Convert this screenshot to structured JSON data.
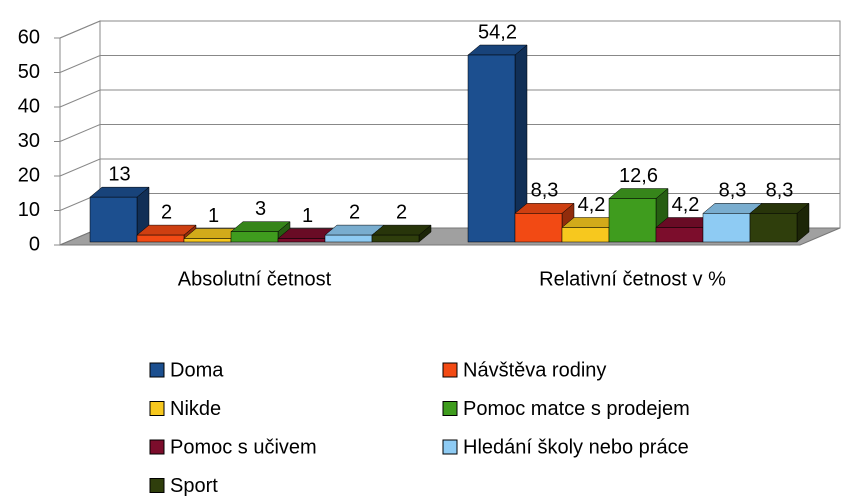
{
  "chart_data": {
    "type": "bar3d",
    "categories": [
      "Absolutní četnost",
      "Relativní četnost v %"
    ],
    "series": [
      {
        "name": "Doma",
        "color": "#1c4f8f",
        "values": [
          13,
          54.2
        ],
        "value_labels": [
          "13",
          "54,2"
        ]
      },
      {
        "name": "Návštěva rodiny",
        "color": "#f24a14",
        "values": [
          2,
          8.3
        ],
        "value_labels": [
          "2",
          "8,3"
        ]
      },
      {
        "name": "Nikde",
        "color": "#f7c81e",
        "values": [
          1,
          4.2
        ],
        "value_labels": [
          "1",
          "4,2"
        ]
      },
      {
        "name": "Pomoc matce s prodejem",
        "color": "#3f9c1e",
        "values": [
          3,
          12.6
        ],
        "value_labels": [
          "3",
          "12,6"
        ]
      },
      {
        "name": "Pomoc s učivem",
        "color": "#7c0d2c",
        "values": [
          1,
          4.2
        ],
        "value_labels": [
          "1",
          "4,2"
        ]
      },
      {
        "name": "Hledání školy nebo práce",
        "color": "#8ecbf3",
        "values": [
          2,
          8.3
        ],
        "value_labels": [
          "2",
          "8,3"
        ]
      },
      {
        "name": "Sport",
        "color": "#2f3e0c",
        "values": [
          2,
          8.3
        ],
        "value_labels": [
          "2",
          "8,3"
        ]
      }
    ],
    "ylim": [
      0,
      60
    ],
    "yticks": [
      0,
      10,
      20,
      30,
      40,
      50,
      60
    ],
    "grid": true,
    "legend": "bottom"
  }
}
